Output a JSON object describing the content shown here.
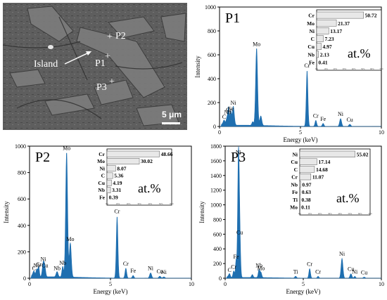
{
  "sem": {
    "island_label": "Island",
    "points": [
      {
        "label": "P1",
        "marker": "+"
      },
      {
        "label": "P2",
        "marker": "+"
      },
      {
        "label": "P3",
        "marker": "+"
      }
    ],
    "scalebar_label": "5 μm"
  },
  "chart_data": [
    {
      "type": "area",
      "panel": "P1",
      "title": "P1",
      "xlabel": "Energy (keV)",
      "ylabel": "Intensity",
      "xlim": [
        0,
        10
      ],
      "ylim": [
        0,
        1000
      ],
      "x_ticks": [
        "0",
        "5",
        "10"
      ],
      "y_ticks": [
        "0",
        "200",
        "400",
        "600",
        "800",
        "1000"
      ],
      "color": "#1f6fb0",
      "peaks": [
        {
          "x": 0.18,
          "y": 12,
          "label": "",
          "w": 0.06
        },
        {
          "x": 0.28,
          "y": 40,
          "label": "C",
          "w": 0.05
        },
        {
          "x": 0.5,
          "y": 80,
          "label": "Nb",
          "w": 0.08
        },
        {
          "x": 0.57,
          "y": 100,
          "label": "Cr",
          "w": 0.04
        },
        {
          "x": 0.7,
          "y": 110,
          "label": "Fe",
          "w": 0.04
        },
        {
          "x": 0.85,
          "y": 160,
          "label": "Ni",
          "w": 0.06
        },
        {
          "x": 2.05,
          "y": 30,
          "label": "",
          "w": 0.05
        },
        {
          "x": 2.29,
          "y": 650,
          "label": "Mo",
          "w": 0.06
        },
        {
          "x": 2.55,
          "y": 80,
          "label": "",
          "w": 0.06
        },
        {
          "x": 5.41,
          "y": 470,
          "label": "Cr",
          "w": 0.05
        },
        {
          "x": 5.95,
          "y": 50,
          "label": "Cr",
          "w": 0.05
        },
        {
          "x": 6.4,
          "y": 25,
          "label": "Fe",
          "w": 0.05
        },
        {
          "x": 7.48,
          "y": 65,
          "label": "Ni",
          "w": 0.06
        },
        {
          "x": 8.05,
          "y": 18,
          "label": "Cu",
          "w": 0.06
        }
      ],
      "inset": {
        "unit_label": "at.%",
        "rows": [
          {
            "element": "Cr",
            "value": 50.72
          },
          {
            "element": "Mo",
            "value": 21.37
          },
          {
            "element": "Ni",
            "value": 13.17
          },
          {
            "element": "C",
            "value": 7.23
          },
          {
            "element": "Cu",
            "value": 4.97
          },
          {
            "element": "Nb",
            "value": 2.13
          },
          {
            "element": "Fe",
            "value": 0.41
          }
        ],
        "axis_ticks": [
          "0%",
          "10%",
          "20%",
          "30%",
          "40%",
          "50%",
          "60%",
          "70%"
        ]
      }
    },
    {
      "type": "area",
      "panel": "P2",
      "title": "P2",
      "xlabel": "Energy (keV)",
      "ylabel": "Intensity",
      "xlim": [
        0,
        10
      ],
      "ylim": [
        0,
        1000
      ],
      "x_ticks": [
        "0",
        "5",
        "10"
      ],
      "y_ticks": [
        "0",
        "200",
        "400",
        "600",
        "800",
        "1000"
      ],
      "color": "#1f6fb0",
      "peaks": [
        {
          "x": 0.18,
          "y": 15,
          "label": "",
          "w": 0.06
        },
        {
          "x": 0.27,
          "y": 40,
          "label": "C",
          "w": 0.05
        },
        {
          "x": 0.45,
          "y": 60,
          "label": "Nb",
          "w": 0.06
        },
        {
          "x": 0.57,
          "y": 70,
          "label": "Cr",
          "w": 0.04
        },
        {
          "x": 0.85,
          "y": 110,
          "label": "Ni",
          "w": 0.06
        },
        {
          "x": 0.95,
          "y": 60,
          "label": "Cu",
          "w": 0.05
        },
        {
          "x": 1.7,
          "y": 40,
          "label": "Nb",
          "w": 0.06
        },
        {
          "x": 2.05,
          "y": 80,
          "label": "Nb",
          "w": 0.05
        },
        {
          "x": 2.29,
          "y": 950,
          "label": "Mo",
          "w": 0.06
        },
        {
          "x": 2.52,
          "y": 260,
          "label": "Mo",
          "w": 0.06
        },
        {
          "x": 5.41,
          "y": 470,
          "label": "Cr",
          "w": 0.05
        },
        {
          "x": 5.95,
          "y": 75,
          "label": "Cr",
          "w": 0.05
        },
        {
          "x": 6.4,
          "y": 20,
          "label": "Fe",
          "w": 0.05
        },
        {
          "x": 7.48,
          "y": 40,
          "label": "Ni",
          "w": 0.06
        },
        {
          "x": 8.05,
          "y": 15,
          "label": "Cu",
          "w": 0.06
        },
        {
          "x": 8.3,
          "y": 10,
          "label": "Ni",
          "w": 0.06
        }
      ],
      "inset": {
        "unit_label": "at.%",
        "rows": [
          {
            "element": "Cr",
            "value": 48.66
          },
          {
            "element": "Mo",
            "value": 30.02
          },
          {
            "element": "Ni",
            "value": 8.07
          },
          {
            "element": "C",
            "value": 5.36
          },
          {
            "element": "Cu",
            "value": 4.19
          },
          {
            "element": "Nb",
            "value": 3.31
          },
          {
            "element": "Fe",
            "value": 0.39
          }
        ],
        "axis_ticks": [
          "0%",
          "10%",
          "20%",
          "30%",
          "40%",
          "50%",
          "60%"
        ]
      }
    },
    {
      "type": "area",
      "panel": "P3",
      "title": "P3",
      "xlabel": "Energy (keV)",
      "ylabel": "Intensity",
      "xlim": [
        0,
        10
      ],
      "ylim": [
        0,
        1800
      ],
      "x_ticks": [
        "0",
        "5",
        "10"
      ],
      "y_ticks": [
        "0",
        "200",
        "400",
        "600",
        "800",
        "1000",
        "1200",
        "1400",
        "1600",
        "1800"
      ],
      "color": "#1f6fb0",
      "peaks": [
        {
          "x": 0.18,
          "y": 15,
          "label": "",
          "w": 0.06
        },
        {
          "x": 0.28,
          "y": 50,
          "label": "C",
          "w": 0.05
        },
        {
          "x": 0.55,
          "y": 90,
          "label": "Cr",
          "w": 0.05
        },
        {
          "x": 0.7,
          "y": 230,
          "label": "Fe",
          "w": 0.04
        },
        {
          "x": 0.85,
          "y": 1650,
          "label": "Ni",
          "w": 0.05
        },
        {
          "x": 0.93,
          "y": 560,
          "label": "Cu",
          "w": 0.05
        },
        {
          "x": 1.74,
          "y": 40,
          "label": "",
          "w": 0.05
        },
        {
          "x": 2.17,
          "y": 110,
          "label": "Nb",
          "w": 0.05
        },
        {
          "x": 2.29,
          "y": 70,
          "label": "Mo",
          "w": 0.05
        },
        {
          "x": 4.51,
          "y": 25,
          "label": "Ti",
          "w": 0.05
        },
        {
          "x": 5.41,
          "y": 130,
          "label": "Cr",
          "w": 0.05
        },
        {
          "x": 5.95,
          "y": 25,
          "label": "Cr",
          "w": 0.05
        },
        {
          "x": 7.48,
          "y": 270,
          "label": "Ni",
          "w": 0.06
        },
        {
          "x": 8.05,
          "y": 60,
          "label": "Cu",
          "w": 0.06
        },
        {
          "x": 8.3,
          "y": 25,
          "label": "Ni",
          "w": 0.05
        },
        {
          "x": 8.9,
          "y": 15,
          "label": "Cu",
          "w": 0.06
        }
      ],
      "inset": {
        "unit_label": "at.%",
        "rows": [
          {
            "element": "Ni",
            "value": 55.02
          },
          {
            "element": "Cu",
            "value": 17.14
          },
          {
            "element": "C",
            "value": 14.68
          },
          {
            "element": "Cr",
            "value": 11.07
          },
          {
            "element": "Nb",
            "value": 0.97
          },
          {
            "element": "Fe",
            "value": 0.63
          },
          {
            "element": "Ti",
            "value": 0.38
          },
          {
            "element": "Mo",
            "value": 0.11
          }
        ],
        "axis_ticks": [
          "0%",
          "10%",
          "20%",
          "30%",
          "40%",
          "50%",
          "60%",
          "70%"
        ]
      }
    }
  ]
}
